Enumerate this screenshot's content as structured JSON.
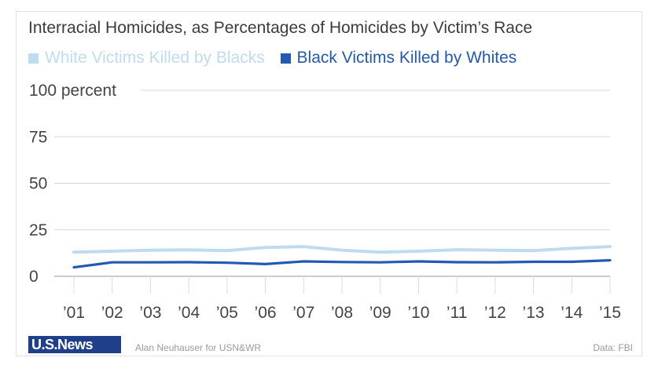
{
  "chart_data": {
    "type": "line",
    "title": "Interracial Homicides, as Percentages of Homicides by Victim’s Race",
    "xlabel": "",
    "ylabel": "",
    "categories": [
      "’01",
      "’02",
      "’03",
      "’04",
      "’05",
      "’06",
      "’07",
      "’08",
      "’09",
      "’10",
      "’11",
      "’12",
      "’13",
      "’14",
      "’15"
    ],
    "yticks": [
      "100 percent",
      "75",
      "50",
      "25",
      "0"
    ],
    "ylim": [
      0,
      100
    ],
    "grid": true,
    "legend_position": "top-left",
    "series": [
      {
        "name": "White Victims Killed by Blacks",
        "color": "#bfdcef",
        "values": [
          13,
          13.5,
          14,
          14.2,
          13.8,
          15.5,
          16,
          14,
          13,
          13.5,
          14.3,
          14,
          13.8,
          15,
          16
        ]
      },
      {
        "name": "Black Victims Killed by Whites",
        "color": "#2358b4",
        "values": [
          4.8,
          7.5,
          7.5,
          7.6,
          7.3,
          6.6,
          8,
          7.7,
          7.5,
          8,
          7.6,
          7.5,
          7.8,
          7.8,
          8.6
        ]
      }
    ]
  },
  "footer": {
    "logo_text": "U.S.News",
    "credit": "Alan Neuhauser for USN&WR",
    "source": "Data: FBI"
  },
  "colors": {
    "title": "#3c3c3c",
    "grid": "#d8d8d8",
    "axis_text": "#444444",
    "logo_bg": "#1f3f8a",
    "logo_accent": "#d2232a"
  }
}
